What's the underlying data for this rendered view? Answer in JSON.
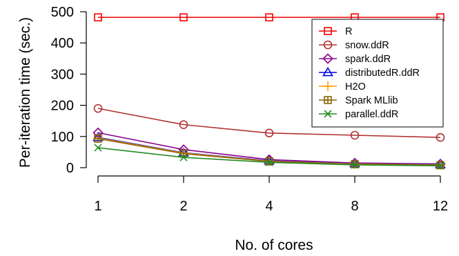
{
  "chart_data": {
    "type": "line",
    "title": "",
    "xlabel": "No. of cores",
    "ylabel": "Per-iteration time (sec.)",
    "categories": [
      "1",
      "2",
      "4",
      "8",
      "12"
    ],
    "ylim": [
      0,
      500
    ],
    "yticks": [
      0,
      100,
      200,
      300,
      400,
      500
    ],
    "grid": false,
    "legend_position": "top-right",
    "series": [
      {
        "name": "R",
        "marker": "square",
        "color": "#ee0000",
        "values": [
          482,
          482,
          482,
          482,
          482
        ]
      },
      {
        "name": "snow.ddR",
        "marker": "circle",
        "color": "#b03030",
        "values": [
          190,
          138,
          111,
          104,
          97
        ]
      },
      {
        "name": "spark.ddR",
        "marker": "diamond",
        "color": "#8b008b",
        "values": [
          112,
          58,
          26,
          15,
          12
        ]
      },
      {
        "name": "distributedR.ddR",
        "marker": "triangle",
        "color": "#0000ee",
        "values": [
          97,
          48,
          22,
          13,
          10
        ]
      },
      {
        "name": "H2O",
        "marker": "plus",
        "color": "#ff9900",
        "values": [
          95,
          47,
          21,
          12,
          9
        ]
      },
      {
        "name": "Spark MLlib",
        "marker": "square-cross",
        "color": "#8b6508",
        "values": [
          93,
          45,
          20,
          11,
          8
        ]
      },
      {
        "name": "parallel.ddR",
        "marker": "x",
        "color": "#228b22",
        "values": [
          64,
          33,
          17,
          9,
          6
        ]
      }
    ]
  }
}
